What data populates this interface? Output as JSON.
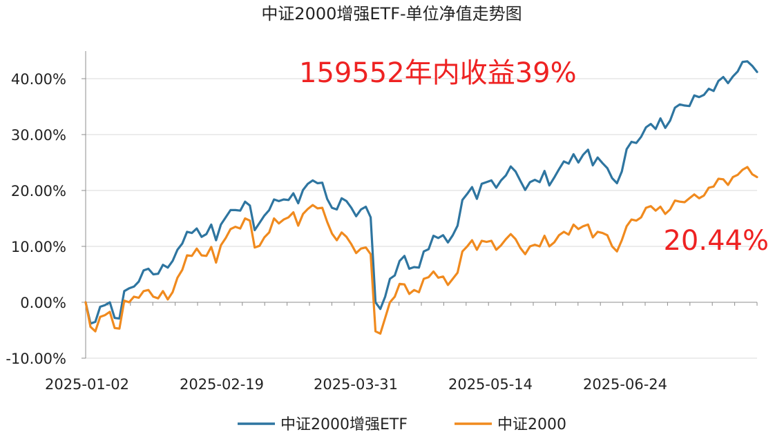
{
  "chart_data": {
    "type": "line",
    "title": "中证2000增强ETF-单位净值走势图",
    "x_tick_labels": [
      "2025-01-02",
      "2025-02-19",
      "2025-03-31",
      "2025-05-14",
      "2025-06-24"
    ],
    "y_tick_labels": [
      "-10.00%",
      "0.00%",
      "10.00%",
      "20.00%",
      "30.00%",
      "40.00%"
    ],
    "ylim": [
      -10,
      45
    ],
    "grid": "horizontal",
    "legend_position": "bottom",
    "annotations": [
      {
        "text": "159552年内收益39%",
        "color": "#ee2222"
      },
      {
        "text": "20.44%",
        "color": "#ee2222"
      }
    ],
    "series": [
      {
        "name": "中证2000增强ETF",
        "color": "#2e75a0",
        "values": [
          0,
          -3.8,
          -3.5,
          -0.8,
          -0.5,
          0,
          -2.8,
          -2.9,
          2,
          2.5,
          2.8,
          3.7,
          5.7,
          6,
          5,
          5.1,
          6.7,
          6.2,
          7.4,
          9.4,
          10.5,
          12.6,
          12.4,
          13.2,
          11.7,
          12.2,
          13.9,
          11.1,
          13.9,
          15.2,
          16.5,
          16.5,
          16.4,
          18,
          17.3,
          12.9,
          14.2,
          15.5,
          16.5,
          18.4,
          18.1,
          18.4,
          18.3,
          19.5,
          17.7,
          20.1,
          21.2,
          21.8,
          21.3,
          21.4,
          18.5,
          16.9,
          16.6,
          18.6,
          18.1,
          16.9,
          15.4,
          16.6,
          17.1,
          15.2,
          0,
          -1.2,
          1,
          4.2,
          4.8,
          7.4,
          8.3,
          6,
          6.3,
          6.2,
          9.1,
          9.5,
          11.9,
          11.5,
          12,
          10.7,
          12,
          13.7,
          18.3,
          19.4,
          20.6,
          18.5,
          21.2,
          21.5,
          21.8,
          20.5,
          21.8,
          22.7,
          24.3,
          23.4,
          21.7,
          20.1,
          21.5,
          21.9,
          21.5,
          23.5,
          20.9,
          22.3,
          23.8,
          25.2,
          24.8,
          26.5,
          25,
          26.4,
          27.3,
          24.5,
          25.9,
          24.9,
          24,
          22.2,
          21.3,
          23.4,
          27.4,
          28.7,
          28.5,
          29.6,
          31.3,
          31.9,
          31,
          32.9,
          31.2,
          32.5,
          34.8,
          35.4,
          35.2,
          35.1,
          37,
          36.7,
          37.1,
          38.2,
          37.8,
          39.6,
          40.3,
          39.2,
          40.4,
          41.3,
          43,
          43.1,
          42.3,
          41.2
        ]
      },
      {
        "name": "中证2000",
        "color": "#f08a1e",
        "values": [
          0,
          -4.4,
          -5.2,
          -2.6,
          -2.3,
          -1.7,
          -4.6,
          -4.7,
          0.3,
          0,
          1,
          0.8,
          2,
          2.2,
          1,
          0.7,
          2,
          0.5,
          1.8,
          4.4,
          5.8,
          8.4,
          8.3,
          9.6,
          8.4,
          8.3,
          9.9,
          7.1,
          10.2,
          11.5,
          13.1,
          13.5,
          13.2,
          15,
          14.6,
          9.8,
          10.1,
          11.6,
          12.5,
          15,
          14.1,
          14.8,
          15.2,
          16.1,
          13.7,
          15.8,
          16.7,
          17.4,
          16.8,
          16.9,
          14.4,
          12.3,
          11.1,
          12.5,
          11.7,
          10.4,
          8.8,
          9.6,
          9.8,
          8.6,
          -5.2,
          -5.6,
          -2.8,
          0,
          1,
          3.3,
          3.2,
          1.5,
          2.2,
          1.8,
          4.2,
          4.5,
          5.5,
          4.4,
          4.6,
          3.1,
          4.2,
          5.3,
          9.1,
          10,
          11.1,
          9.4,
          11,
          10.8,
          11,
          9.4,
          10.2,
          11.3,
          12.2,
          11.3,
          9.7,
          8.6,
          10,
          10.3,
          10,
          11.9,
          10,
          10.7,
          12,
          12.6,
          12.1,
          13.9,
          13.1,
          13.6,
          13.9,
          11.6,
          12.6,
          12.4,
          12,
          10,
          9.1,
          11.1,
          13.6,
          14.8,
          14.6,
          15.2,
          16.9,
          17.2,
          16.4,
          17.1,
          15.8,
          16.6,
          18.2,
          18,
          17.9,
          18.6,
          19.3,
          18.6,
          19.1,
          20.5,
          20.7,
          22.1,
          22,
          21,
          22.4,
          22.8,
          23.7,
          24.2,
          22.9,
          22.4
        ]
      }
    ]
  }
}
